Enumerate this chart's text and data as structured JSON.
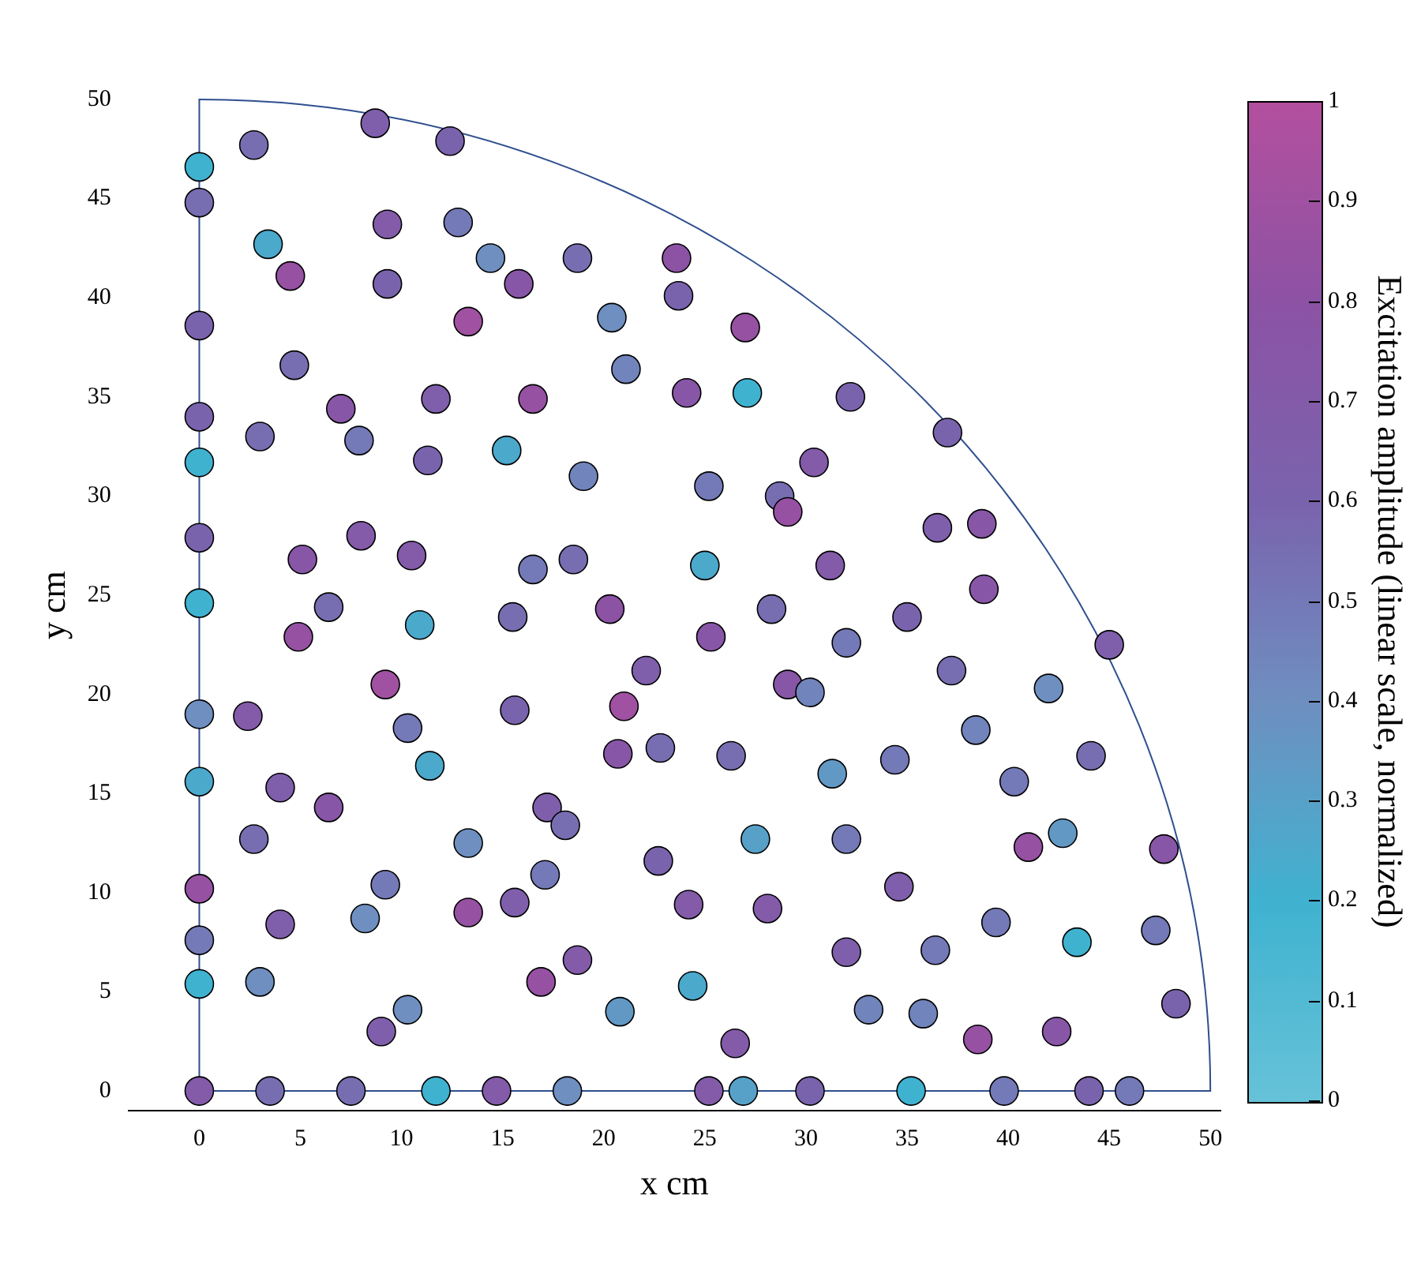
{
  "chart_data": {
    "type": "scatter",
    "xlabel": "x cm",
    "ylabel": "y cm",
    "clabel": "Excitation amplitude (linear scale, normalized)",
    "xlim": [
      -3.5,
      50.5
    ],
    "ylim": [
      -1,
      50
    ],
    "xticks": [
      0,
      5,
      10,
      15,
      20,
      25,
      30,
      35,
      40,
      45,
      50
    ],
    "yticks": [
      0,
      5,
      10,
      15,
      20,
      25,
      30,
      35,
      40,
      45,
      50
    ],
    "clim": [
      0,
      1
    ],
    "cticks": [
      0,
      0.1,
      0.2,
      0.3,
      0.4,
      0.5,
      0.6,
      0.7,
      0.8,
      0.9,
      1
    ],
    "grid": false,
    "legend": false,
    "marker": "circle",
    "series": [
      {
        "x": [
          0,
          0,
          0,
          0,
          0,
          0,
          0,
          0,
          0,
          0,
          0,
          0,
          0,
          3.5,
          7.5,
          11.7,
          14.7,
          18.2,
          25.2,
          26.9,
          30.2,
          35.2,
          39.8,
          44,
          46,
          2.7,
          8.7,
          12.4,
          9.3,
          12.8,
          3.4,
          4.5,
          9.3,
          14.4,
          15.8,
          18.7,
          23.6,
          23.7,
          13.3,
          20.4,
          27,
          4.7,
          21.1,
          7,
          11.7,
          16.5,
          24.1,
          27.1,
          32.2,
          3,
          7.9,
          11.3,
          15.2,
          37,
          19,
          25.2,
          30.4,
          28.7,
          29.1,
          36.5,
          38.7,
          5.1,
          8,
          10.5,
          6.4,
          16.5,
          18.5,
          25,
          31.2,
          4.9,
          10.9,
          15.5,
          20.3,
          28.3,
          25.3,
          32,
          35,
          38.8,
          45,
          2.4,
          9.2,
          10.3,
          15.6,
          22.1,
          21,
          29.1,
          30.2,
          37.2,
          42,
          4,
          11.4,
          20.7,
          22.8,
          26.3,
          31.3,
          34.4,
          38.4,
          40.3,
          44.1,
          6.4,
          2.7,
          13.3,
          17.2,
          18.1,
          27.5,
          32,
          42.7,
          41,
          47.7,
          9.2,
          4,
          8.2,
          13.3,
          15.6,
          17.1,
          22.7,
          24.2,
          28.1,
          34.6,
          39.4,
          47.3,
          43.4,
          3,
          10.3,
          9,
          16.9,
          18.7,
          20.8,
          24.4,
          26.5,
          32,
          33.1,
          35.8,
          36.4,
          38.5,
          42.4,
          48.3
        ],
        "values": [
          46.6,
          44.8,
          38.6,
          34,
          31.7,
          27.9,
          24.6,
          19,
          15.6,
          10.2,
          7.6,
          5.4,
          0,
          0,
          0,
          0,
          0,
          0,
          0,
          0,
          0,
          0,
          0,
          0,
          0,
          47.7,
          48.8,
          47.9,
          43.7,
          43.8,
          42.7,
          41.1,
          40.7,
          42,
          40.7,
          42,
          42,
          40.1,
          38.8,
          39,
          38.5,
          36.6,
          36.4,
          34.4,
          34.9,
          34.9,
          35.2,
          35.2,
          35,
          33,
          32.8,
          31.8,
          32.3,
          33.2,
          31,
          30.5,
          31.7,
          30,
          29.2,
          28.4,
          28.6,
          26.8,
          28,
          27,
          24.4,
          26.3,
          26.8,
          26.5,
          26.5,
          22.9,
          23.5,
          23.9,
          24.3,
          24.3,
          22.9,
          22.6,
          23.9,
          25.3,
          22.5,
          18.9,
          20.5,
          18.3,
          19.2,
          21.2,
          19.4,
          20.5,
          20.1,
          21.2,
          20.3,
          15.3,
          16.4,
          17,
          17.3,
          16.9,
          16,
          16.7,
          18.2,
          15.6,
          16.9,
          14.3,
          12.7,
          12.5,
          14.3,
          13.4,
          12.7,
          12.7,
          13,
          12.3,
          12.2,
          10.4,
          8.4,
          8.7,
          9,
          9.5,
          10.9,
          11.6,
          9.4,
          9.2,
          10.3,
          8.5,
          8.1,
          7.5,
          5.5,
          4.1,
          3,
          5.5,
          6.6,
          4,
          5.3,
          2.4,
          7,
          4.1,
          3.9,
          7.1,
          2.6,
          3,
          4.4
        ],
        "cvalues": [
          0.2,
          0.55,
          0.6,
          0.6,
          0.2,
          0.6,
          0.2,
          0.4,
          0.25,
          0.85,
          0.5,
          0.2,
          0.7,
          0.55,
          0.55,
          0.2,
          0.7,
          0.4,
          0.7,
          0.3,
          0.6,
          0.2,
          0.5,
          0.6,
          0.5,
          0.55,
          0.65,
          0.6,
          0.7,
          0.5,
          0.25,
          0.85,
          0.6,
          0.4,
          0.75,
          0.55,
          0.8,
          0.6,
          0.9,
          0.4,
          0.85,
          0.55,
          0.45,
          0.75,
          0.65,
          0.85,
          0.75,
          0.2,
          0.6,
          0.55,
          0.5,
          0.6,
          0.25,
          0.6,
          0.45,
          0.5,
          0.7,
          0.55,
          0.85,
          0.65,
          0.75,
          0.75,
          0.7,
          0.7,
          0.55,
          0.5,
          0.55,
          0.25,
          0.7,
          0.85,
          0.25,
          0.55,
          0.8,
          0.55,
          0.75,
          0.5,
          0.6,
          0.75,
          0.65,
          0.7,
          0.9,
          0.5,
          0.6,
          0.65,
          0.9,
          0.75,
          0.45,
          0.55,
          0.4,
          0.65,
          0.25,
          0.75,
          0.55,
          0.55,
          0.35,
          0.5,
          0.45,
          0.5,
          0.55,
          0.75,
          0.55,
          0.4,
          0.65,
          0.55,
          0.3,
          0.5,
          0.35,
          0.85,
          0.75,
          0.5,
          0.65,
          0.4,
          0.85,
          0.65,
          0.5,
          0.6,
          0.7,
          0.7,
          0.65,
          0.5,
          0.5,
          0.2,
          0.4,
          0.4,
          0.65,
          0.85,
          0.7,
          0.35,
          0.25,
          0.7,
          0.65,
          0.45,
          0.45,
          0.5,
          0.85,
          0.75,
          0.6
        ]
      }
    ]
  }
}
